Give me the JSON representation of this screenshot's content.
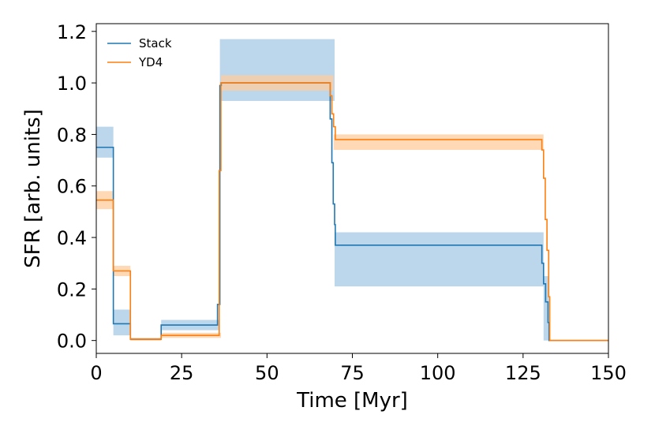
{
  "chart_data": {
    "type": "line",
    "step": true,
    "title": "",
    "xlabel": "Time [Myr]",
    "ylabel": "SFR [arb. units]",
    "xlim": [
      0,
      150
    ],
    "ylim": [
      -0.05,
      1.23
    ],
    "xticks": [
      0,
      25,
      50,
      75,
      100,
      125,
      150
    ],
    "xtick_labels": [
      "0",
      "25",
      "50",
      "75",
      "100",
      "125",
      "150"
    ],
    "yticks": [
      0.0,
      0.2,
      0.4,
      0.6,
      0.8,
      1.0,
      1.2
    ],
    "ytick_labels": [
      "0.0",
      "0.2",
      "0.4",
      "0.6",
      "0.8",
      "1.0",
      "1.2"
    ],
    "grid": false,
    "legend_position": "top-left",
    "series": [
      {
        "name": "Stack",
        "color": "#1f77b4",
        "band_color": "#a6c8e4",
        "x": [
          0,
          5,
          5.6,
          10,
          19,
          35.5,
          36.2,
          36.6,
          68.5,
          69,
          69.4,
          69.8,
          70,
          70.6,
          130.5,
          131,
          131.6,
          132.3,
          132.6,
          150
        ],
        "y": [
          0.75,
          0.065,
          0.065,
          0.005,
          0.06,
          0.14,
          0.99,
          1.0,
          0.86,
          0.69,
          0.53,
          0.45,
          0.37,
          0.37,
          0.3,
          0.22,
          0.15,
          0.07,
          0.0,
          0.0
        ],
        "band_x": [
          0,
          5,
          10,
          19,
          36.2,
          69.8,
          131,
          132.6,
          150
        ],
        "band_low": [
          0.71,
          0.02,
          0.0,
          0.04,
          0.93,
          0.21,
          0.0,
          0.0,
          0.0
        ],
        "band_high": [
          0.83,
          0.12,
          0.01,
          0.08,
          1.17,
          0.42,
          0.25,
          0.0,
          0.0
        ]
      },
      {
        "name": "YD4",
        "color": "#ff7f0e",
        "band_color": "#ffcc9e",
        "x": [
          0,
          5,
          5.3,
          10,
          19,
          36,
          36.5,
          68.5,
          69,
          69.5,
          70,
          130.5,
          131,
          131.5,
          132,
          132.5,
          132.8,
          150
        ],
        "y": [
          0.545,
          0.27,
          0.27,
          0.005,
          0.02,
          0.66,
          1.0,
          0.95,
          0.88,
          0.83,
          0.78,
          0.74,
          0.63,
          0.47,
          0.35,
          0.17,
          0.0,
          0.0
        ],
        "band_x": [
          0,
          5,
          10,
          19,
          36.5,
          69.5,
          131,
          132.8,
          150
        ],
        "band_low": [
          0.51,
          0.25,
          0.0,
          0.01,
          0.97,
          0.74,
          0.0,
          0.0,
          0.0
        ],
        "band_high": [
          0.58,
          0.29,
          0.01,
          0.03,
          1.03,
          0.8,
          0.0,
          0.0,
          0.0
        ]
      }
    ]
  }
}
